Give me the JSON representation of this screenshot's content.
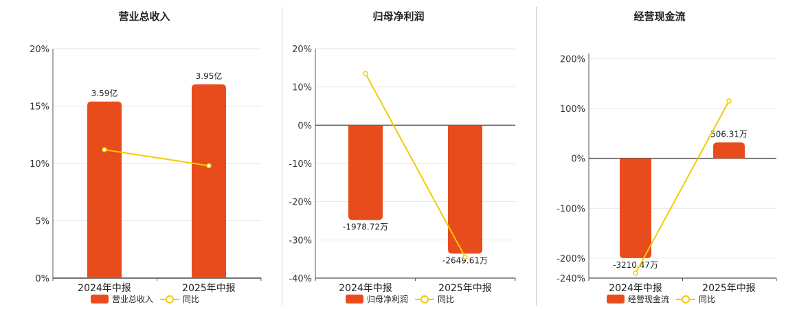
{
  "chart_data": [
    {
      "type": "bar",
      "title": "营业总收入",
      "categories": [
        "2024年中报",
        "2025年中报"
      ],
      "yticks": [
        "0%",
        "5%",
        "10%",
        "15%",
        "20%"
      ],
      "ylim": [
        0,
        20
      ],
      "bar_series": {
        "name": "营业总收入",
        "values": [
          15.4,
          16.9
        ],
        "labels": [
          "3.59亿",
          "3.95亿"
        ]
      },
      "line_series": {
        "name": "同比",
        "values": [
          11.2,
          9.8
        ]
      },
      "colors": {
        "bar": "#e84c1c",
        "line": "#f2cc00"
      },
      "legend": "bottom"
    },
    {
      "type": "bar",
      "title": "归母净利润",
      "categories": [
        "2024年中报",
        "2025年中报"
      ],
      "yticks": [
        "-40%",
        "-30%",
        "-20%",
        "-10%",
        "0%",
        "10%",
        "20%"
      ],
      "ylim": [
        -40,
        20
      ],
      "bar_series": {
        "name": "归母净利润",
        "values": [
          -24.8,
          -33.6
        ],
        "labels": [
          "-1978.72万",
          "-2649.61万"
        ]
      },
      "line_series": {
        "name": "同比",
        "values": [
          13.5,
          -34.5
        ]
      },
      "colors": {
        "bar": "#e84c1c",
        "line": "#f2cc00"
      },
      "legend": "bottom"
    },
    {
      "type": "bar",
      "title": "经营现金流",
      "categories": [
        "2024年中报",
        "2025年中报"
      ],
      "yticks": [
        "-240%",
        "-200%",
        "-100%",
        "0%",
        "100%",
        "200%"
      ],
      "yticks_values": [
        -240,
        -200,
        -100,
        0,
        100,
        200
      ],
      "ylim": [
        -240,
        210
      ],
      "bar_series": {
        "name": "经营现金流",
        "values": [
          -200,
          32
        ],
        "labels": [
          "-3210.47万",
          "506.31万"
        ]
      },
      "line_series": {
        "name": "同比",
        "values": [
          -230,
          115
        ]
      },
      "colors": {
        "bar": "#e84c1c",
        "line": "#f2cc00"
      },
      "legend": "bottom"
    }
  ]
}
